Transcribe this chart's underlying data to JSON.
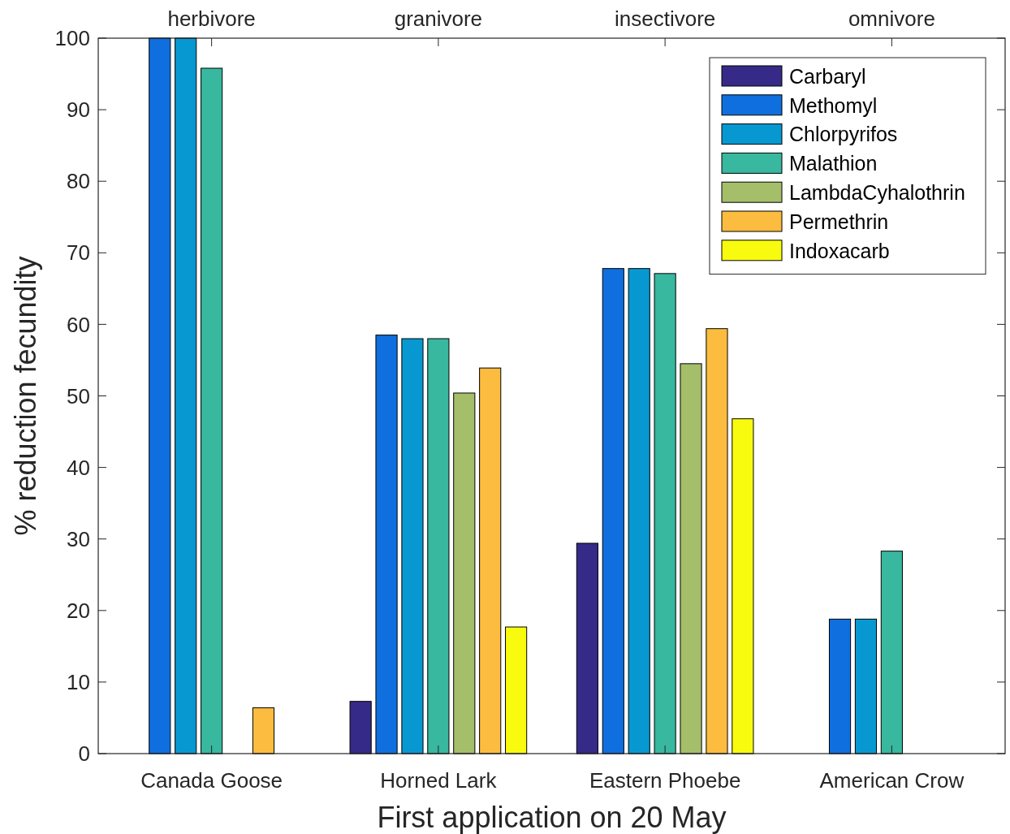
{
  "chart_data": {
    "type": "bar",
    "xlabel": "First application on 20 May",
    "ylabel": "% reduction fecundity",
    "categories": [
      "Canada Goose",
      "Horned Lark",
      "Eastern Phoebe",
      "American Crow"
    ],
    "series": [
      {
        "name": "Carbaryl",
        "color": "#352a87",
        "values": [
          null,
          7.3,
          29.4,
          null
        ]
      },
      {
        "name": "Methomyl",
        "color": "#0f6fde",
        "values": [
          100,
          58.5,
          67.8,
          18.8
        ]
      },
      {
        "name": "Chlorpyrifos",
        "color": "#0898d1",
        "values": [
          100,
          58,
          67.8,
          18.8
        ]
      },
      {
        "name": "Malathion",
        "color": "#38b89e",
        "values": [
          95.8,
          58,
          67.1,
          28.3
        ]
      },
      {
        "name": "LambdaCyhalothrin",
        "color": "#a5be6a",
        "values": [
          null,
          50.4,
          54.5,
          null
        ]
      },
      {
        "name": "Permethrin",
        "color": "#fbbc3f",
        "values": [
          6.4,
          53.9,
          59.4,
          null
        ]
      },
      {
        "name": "Indoxacarb",
        "color": "#f9fb0e",
        "values": [
          null,
          17.7,
          46.8,
          null
        ]
      }
    ],
    "annotations": [
      "herbivore",
      "granivore",
      "insectivore",
      "omnivore"
    ],
    "ylim": [
      0,
      100
    ],
    "yticks": [
      0,
      10,
      20,
      30,
      40,
      50,
      60,
      70,
      80,
      90,
      100
    ],
    "legend": "top right",
    "grid": false
  }
}
